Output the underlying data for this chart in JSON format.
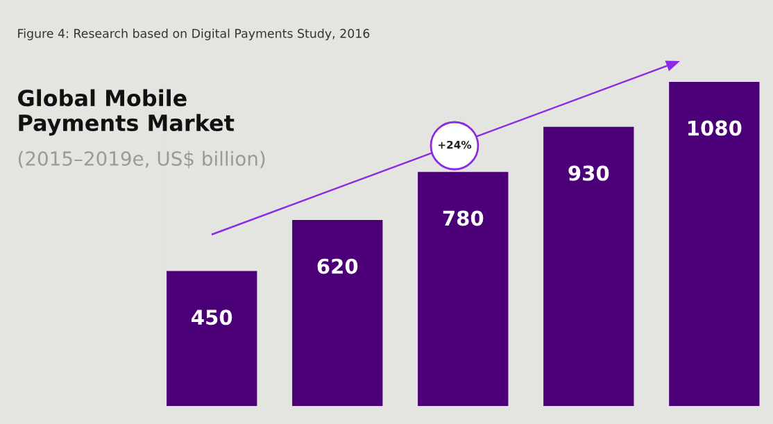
{
  "chart_data": {
    "type": "bar",
    "title": "Global Mobile\nPayments Market",
    "subtitle": "(2015–2019e, US$ billion)",
    "annotations": [
      "Figure 4: Research based on Digital Payments Study, 2016",
      "+24%"
    ],
    "categories": [
      null,
      null,
      null,
      null,
      null
    ],
    "values": [
      450,
      620,
      780,
      930,
      1080
    ],
    "color": "#4b0078",
    "data_labels": true
  }
}
